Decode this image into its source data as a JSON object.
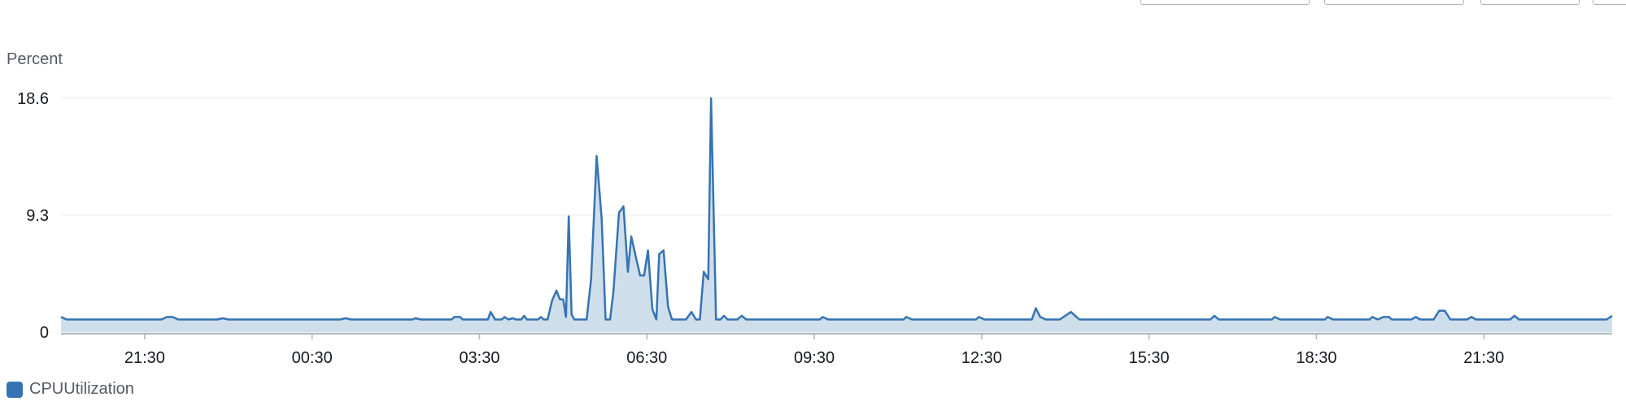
{
  "colors": {
    "series": "#3673b3",
    "fill": "#cedeeb",
    "grid": "#e9ebed",
    "axis": "#aab7b8"
  },
  "chart_data": {
    "type": "area",
    "ylabel": "Percent",
    "ylim": [
      0,
      18.6
    ],
    "yticks": [
      "0",
      "9.3",
      "18.6"
    ],
    "xticks": [
      "21:30",
      "00:30",
      "03:30",
      "06:30",
      "09:30",
      "12:30",
      "15:30",
      "18:30",
      "21:30"
    ],
    "x_range_hours": [
      20.0,
      47.8
    ],
    "grid": true,
    "legend_position": "bottom-left",
    "series": [
      {
        "name": "CPUUtilization",
        "points": [
          [
            20.0,
            1.2
          ],
          [
            20.1,
            1.0
          ],
          [
            21.8,
            1.0
          ],
          [
            21.9,
            1.2
          ],
          [
            22.0,
            1.2
          ],
          [
            22.1,
            1.0
          ],
          [
            22.8,
            1.0
          ],
          [
            22.9,
            1.1
          ],
          [
            23.0,
            1.0
          ],
          [
            25.0,
            1.0
          ],
          [
            25.1,
            1.1
          ],
          [
            25.2,
            1.0
          ],
          [
            26.3,
            1.0
          ],
          [
            26.35,
            1.1
          ],
          [
            26.45,
            1.0
          ],
          [
            27.0,
            1.0
          ],
          [
            27.05,
            1.2
          ],
          [
            27.15,
            1.2
          ],
          [
            27.2,
            1.0
          ],
          [
            27.3,
            1.0
          ],
          [
            27.65,
            1.0
          ],
          [
            27.7,
            1.6
          ],
          [
            27.78,
            1.0
          ],
          [
            27.9,
            1.0
          ],
          [
            27.95,
            1.2
          ],
          [
            28.02,
            1.0
          ],
          [
            28.1,
            1.1
          ],
          [
            28.15,
            1.0
          ],
          [
            28.25,
            1.0
          ],
          [
            28.3,
            1.3
          ],
          [
            28.35,
            1.0
          ],
          [
            28.55,
            1.0
          ],
          [
            28.6,
            1.2
          ],
          [
            28.65,
            1.0
          ],
          [
            28.72,
            1.0
          ],
          [
            28.8,
            2.5
          ],
          [
            28.88,
            3.3
          ],
          [
            28.94,
            2.6
          ],
          [
            29.0,
            2.6
          ],
          [
            29.05,
            1.2
          ],
          [
            29.1,
            9.2
          ],
          [
            29.15,
            1.4
          ],
          [
            29.2,
            1.0
          ],
          [
            29.42,
            1.0
          ],
          [
            29.5,
            4.2
          ],
          [
            29.6,
            14.0
          ],
          [
            29.69,
            9.0
          ],
          [
            29.76,
            1.0
          ],
          [
            29.84,
            1.0
          ],
          [
            29.9,
            3.2
          ],
          [
            30.0,
            9.5
          ],
          [
            30.08,
            10.0
          ],
          [
            30.16,
            4.8
          ],
          [
            30.22,
            7.6
          ],
          [
            30.3,
            6.0
          ],
          [
            30.38,
            4.5
          ],
          [
            30.45,
            4.5
          ],
          [
            30.52,
            6.5
          ],
          [
            30.6,
            1.8
          ],
          [
            30.67,
            1.0
          ],
          [
            30.72,
            6.2
          ],
          [
            30.8,
            6.5
          ],
          [
            30.88,
            2.0
          ],
          [
            30.95,
            1.0
          ],
          [
            31.2,
            1.0
          ],
          [
            31.3,
            1.6
          ],
          [
            31.38,
            1.0
          ],
          [
            31.45,
            1.0
          ],
          [
            31.52,
            4.8
          ],
          [
            31.6,
            4.2
          ],
          [
            31.65,
            18.6
          ],
          [
            31.74,
            1.0
          ],
          [
            31.82,
            1.0
          ],
          [
            31.88,
            1.3
          ],
          [
            31.95,
            1.0
          ],
          [
            32.12,
            1.0
          ],
          [
            32.2,
            1.3
          ],
          [
            32.28,
            1.0
          ],
          [
            33.6,
            1.0
          ],
          [
            33.65,
            1.2
          ],
          [
            33.75,
            1.0
          ],
          [
            35.1,
            1.0
          ],
          [
            35.15,
            1.2
          ],
          [
            35.25,
            1.0
          ],
          [
            36.4,
            1.0
          ],
          [
            36.45,
            1.2
          ],
          [
            36.55,
            1.0
          ],
          [
            37.4,
            1.0
          ],
          [
            37.47,
            1.9
          ],
          [
            37.55,
            1.2
          ],
          [
            37.65,
            1.0
          ],
          [
            37.9,
            1.0
          ],
          [
            38.1,
            1.6
          ],
          [
            38.25,
            1.0
          ],
          [
            40.6,
            1.0
          ],
          [
            40.67,
            1.3
          ],
          [
            40.75,
            1.0
          ],
          [
            41.7,
            1.0
          ],
          [
            41.75,
            1.2
          ],
          [
            41.85,
            1.0
          ],
          [
            42.65,
            1.0
          ],
          [
            42.7,
            1.2
          ],
          [
            42.8,
            1.0
          ],
          [
            43.45,
            1.0
          ],
          [
            43.5,
            1.2
          ],
          [
            43.6,
            1.0
          ],
          [
            43.7,
            1.2
          ],
          [
            43.8,
            1.2
          ],
          [
            43.85,
            1.0
          ],
          [
            44.2,
            1.0
          ],
          [
            44.28,
            1.2
          ],
          [
            44.36,
            1.0
          ],
          [
            44.6,
            1.0
          ],
          [
            44.7,
            1.7
          ],
          [
            44.8,
            1.7
          ],
          [
            44.9,
            1.0
          ],
          [
            45.2,
            1.0
          ],
          [
            45.28,
            1.2
          ],
          [
            45.36,
            1.0
          ],
          [
            45.97,
            1.0
          ],
          [
            46.05,
            1.3
          ],
          [
            46.13,
            1.0
          ],
          [
            47.7,
            1.0
          ],
          [
            47.8,
            1.3
          ]
        ]
      }
    ]
  }
}
